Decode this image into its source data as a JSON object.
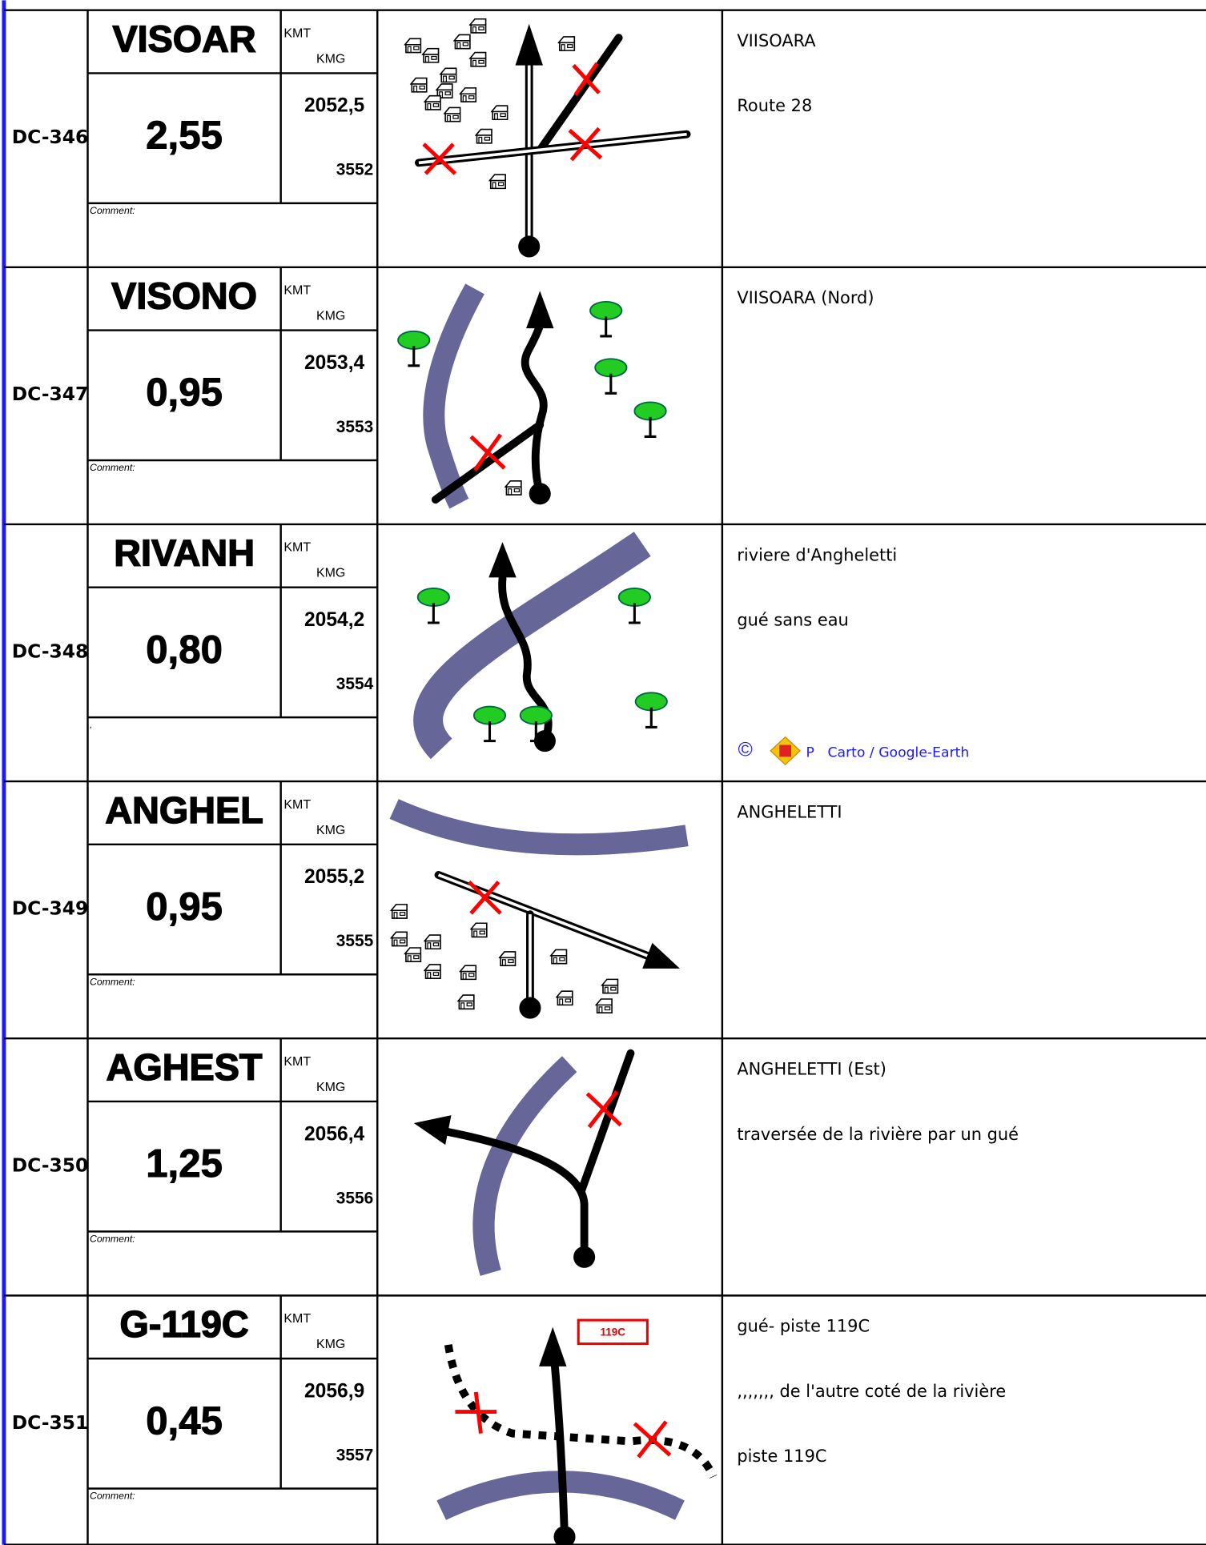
{
  "rows": [
    {
      "id": "DC-346",
      "code": "VISOAR",
      "kmt_label": "KMT",
      "kmg_label": "KMG",
      "distance": "2,55",
      "kmt": "2052,5",
      "kmg": "3552",
      "comment": "Comment:",
      "notes": [
        "VIISOARA",
        "Route 28"
      ]
    },
    {
      "id": "DC-347",
      "code": "VISONO",
      "kmt_label": "KMT",
      "kmg_label": "KMG",
      "distance": "0,95",
      "kmt": "2053,4",
      "kmg": "3553",
      "comment": "Comment:",
      "notes": [
        "VIISOARA (Nord)"
      ]
    },
    {
      "id": "DC-348",
      "code": "RIVANH",
      "kmt_label": "KMT",
      "kmg_label": "KMG",
      "distance": "0,80",
      "kmt": "2054,2",
      "kmg": "3554",
      "comment": ",",
      "notes": [
        "riviere d'Angheletti",
        "gué sans eau"
      ]
    },
    {
      "id": "DC-349",
      "code": "ANGHEL",
      "kmt_label": "KMT",
      "kmg_label": "KMG",
      "distance": "0,95",
      "kmt": "2055,2",
      "kmg": "3555",
      "comment": "Comment:",
      "notes": [
        "ANGHELETTI"
      ]
    },
    {
      "id": "DC-350",
      "code": "AGHEST",
      "kmt_label": "KMT",
      "kmg_label": "KMG",
      "distance": "1,25",
      "kmt": "2056,4",
      "kmg": "3556",
      "comment": "Comment:",
      "notes": [
        "ANGHELETTI (Est)",
        "traversée de la rivière par un gué"
      ]
    },
    {
      "id": "DC-351",
      "code": "G-119C",
      "kmt_label": "KMT",
      "kmg_label": "KMG",
      "distance": "0,45",
      "kmt": "2056,9",
      "kmg": "3557",
      "comment": "Comment:",
      "notes": [
        "gué- piste 119C",
        ",,,,,,, de l'autre coté de la rivière",
        "piste 119C"
      ]
    }
  ],
  "credit": {
    "symbol": "©",
    "letter": "P",
    "text": "Carto / Google-Earth"
  },
  "sign": "119C"
}
